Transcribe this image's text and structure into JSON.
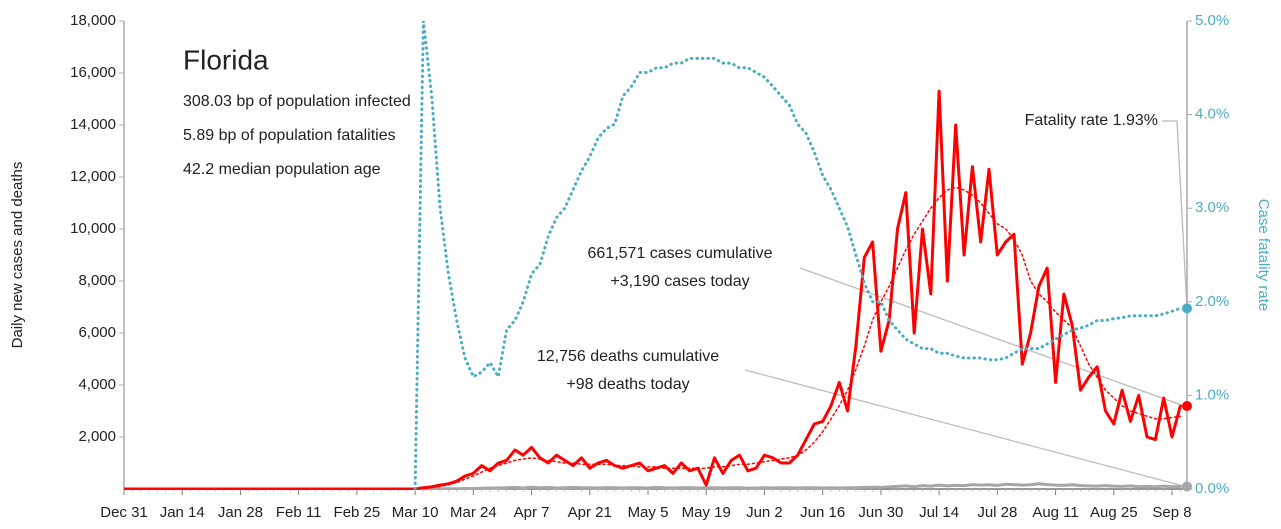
{
  "chart_data": {
    "type": "line",
    "title": "Florida",
    "subtitle_lines": [
      "308.03 bp of population infected",
      "5.89 bp of population fatalities",
      "42.2 median population age"
    ],
    "ylabel": "Daily new cases and deaths",
    "y2label": "Case fatality rate",
    "annotations": {
      "fatality": "Fatality rate 1.93%",
      "cases": [
        "661,571 cases cumulative",
        "+3,190 cases today"
      ],
      "deaths": [
        "12,756 deaths cumulative",
        "+98 deaths today"
      ]
    },
    "x": [
      "Dec 31",
      "Jan 2",
      "Jan 4",
      "Jan 6",
      "Jan 8",
      "Jan 10",
      "Jan 12",
      "Jan 14",
      "Jan 16",
      "Jan 18",
      "Jan 20",
      "Jan 22",
      "Jan 24",
      "Jan 26",
      "Jan 28",
      "Jan 30",
      "Feb 1",
      "Feb 3",
      "Feb 5",
      "Feb 7",
      "Feb 9",
      "Feb 11",
      "Feb 13",
      "Feb 15",
      "Feb 17",
      "Feb 19",
      "Feb 21",
      "Feb 23",
      "Feb 25",
      "Feb 27",
      "Feb 29",
      "Mar 2",
      "Mar 4",
      "Mar 6",
      "Mar 8",
      "Mar 10",
      "Mar 12",
      "Mar 14",
      "Mar 16",
      "Mar 18",
      "Mar 20",
      "Mar 22",
      "Mar 24",
      "Mar 26",
      "Mar 28",
      "Mar 30",
      "Apr 1",
      "Apr 3",
      "Apr 5",
      "Apr 7",
      "Apr 9",
      "Apr 11",
      "Apr 13",
      "Apr 15",
      "Apr 17",
      "Apr 19",
      "Apr 21",
      "Apr 23",
      "Apr 25",
      "Apr 27",
      "Apr 29",
      "May 1",
      "May 3",
      "May 5",
      "May 7",
      "May 9",
      "May 11",
      "May 13",
      "May 15",
      "May 17",
      "May 19",
      "May 21",
      "May 23",
      "May 25",
      "May 27",
      "May 29",
      "May 31",
      "Jun 2",
      "Jun 4",
      "Jun 6",
      "Jun 8",
      "Jun 10",
      "Jun 12",
      "Jun 14",
      "Jun 16",
      "Jun 18",
      "Jun 20",
      "Jun 22",
      "Jun 24",
      "Jun 26",
      "Jun 28",
      "Jun 30",
      "Jul 2",
      "Jul 4",
      "Jul 6",
      "Jul 8",
      "Jul 10",
      "Jul 12",
      "Jul 14",
      "Jul 16",
      "Jul 18",
      "Jul 20",
      "Jul 22",
      "Jul 24",
      "Jul 26",
      "Jul 28",
      "Jul 30",
      "Aug 1",
      "Aug 3",
      "Aug 5",
      "Aug 7",
      "Aug 9",
      "Aug 11",
      "Aug 13",
      "Aug 15",
      "Aug 17",
      "Aug 19",
      "Aug 21",
      "Aug 23",
      "Aug 25",
      "Aug 27",
      "Aug 29",
      "Aug 31",
      "Sep 2",
      "Sep 4",
      "Sep 6",
      "Sep 8",
      "Sep 10"
    ],
    "xticks": [
      "Dec 31",
      "Jan 14",
      "Jan 28",
      "Feb 11",
      "Feb 25",
      "Mar 10",
      "Mar 24",
      "Apr 7",
      "Apr 21",
      "May 5",
      "May 19",
      "Jun 2",
      "Jun 16",
      "Jun 30",
      "Jul 14",
      "Jul 28",
      "Aug 11",
      "Aug 25",
      "Sep 8"
    ],
    "ylim": [
      0,
      18000
    ],
    "yticks": [
      {
        "value": 2000,
        "label": "2,000"
      },
      {
        "value": 4000,
        "label": "4,000"
      },
      {
        "value": 6000,
        "label": "6,000"
      },
      {
        "value": 8000,
        "label": "8,000"
      },
      {
        "value": 10000,
        "label": "10,000"
      },
      {
        "value": 12000,
        "label": "12,000"
      },
      {
        "value": 14000,
        "label": "14,000"
      },
      {
        "value": 16000,
        "label": "16,000"
      },
      {
        "value": 18000,
        "label": "18,000"
      }
    ],
    "y2lim": [
      0,
      5
    ],
    "y2ticks": [
      {
        "value": 0,
        "label": "0.0%"
      },
      {
        "value": 1,
        "label": "1.0%"
      },
      {
        "value": 2,
        "label": "2.0%"
      },
      {
        "value": 3,
        "label": "3.0%"
      },
      {
        "value": 4,
        "label": "4.0%"
      },
      {
        "value": 5,
        "label": "5.0%"
      }
    ],
    "series": [
      {
        "name": "Daily new cases",
        "color": "#ff0000",
        "style": "solid",
        "width": 3,
        "endpoint": true,
        "values": [
          0,
          0,
          0,
          0,
          0,
          0,
          0,
          0,
          0,
          0,
          0,
          0,
          0,
          0,
          0,
          0,
          0,
          0,
          0,
          0,
          0,
          0,
          0,
          0,
          0,
          0,
          0,
          0,
          0,
          0,
          0,
          0,
          0,
          0,
          0,
          0,
          50,
          80,
          150,
          200,
          300,
          500,
          600,
          900,
          700,
          1000,
          1100,
          1500,
          1300,
          1600,
          1200,
          1000,
          1300,
          1100,
          900,
          1200,
          800,
          1000,
          1100,
          900,
          800,
          900,
          1000,
          700,
          800,
          900,
          600,
          1000,
          700,
          800,
          150,
          1200,
          600,
          1100,
          1300,
          700,
          800,
          1300,
          1200,
          1000,
          1000,
          1300,
          1900,
          2500,
          2600,
          3200,
          4100,
          3000,
          5500,
          8900,
          9500,
          5300,
          6500,
          10000,
          11400,
          6000,
          10000,
          7500,
          15300,
          8000,
          14000,
          9000,
          12400,
          9500,
          12300,
          9000,
          9500,
          9800,
          4800,
          6000,
          7800,
          8500,
          4100,
          7500,
          6300,
          3800,
          4300,
          4700,
          3000,
          2500,
          3800,
          2600,
          3600,
          2000,
          1900,
          3500,
          2000,
          3190
        ]
      },
      {
        "name": "Cases trend",
        "color": "#ff0000",
        "style": "dotted",
        "width": 1.5,
        "endpoint": false,
        "values": [
          null,
          null,
          null,
          null,
          null,
          null,
          null,
          null,
          null,
          null,
          null,
          null,
          null,
          null,
          null,
          null,
          null,
          null,
          null,
          null,
          null,
          null,
          null,
          null,
          null,
          null,
          null,
          null,
          null,
          null,
          null,
          null,
          null,
          null,
          null,
          null,
          30,
          60,
          100,
          160,
          250,
          380,
          500,
          650,
          800,
          900,
          1000,
          1100,
          1150,
          1200,
          1150,
          1100,
          1050,
          1000,
          1000,
          950,
          950,
          950,
          950,
          900,
          900,
          900,
          850,
          850,
          850,
          800,
          800,
          800,
          800,
          800,
          800,
          850,
          850,
          900,
          950,
          950,
          1000,
          1050,
          1100,
          1150,
          1200,
          1300,
          1500,
          1800,
          2200,
          2700,
          3200,
          3800,
          4600,
          5500,
          6500,
          7200,
          7800,
          8500,
          9200,
          9800,
          10300,
          10800,
          11200,
          11500,
          11600,
          11500,
          11300,
          11000,
          10600,
          10200,
          10000,
          9600,
          9000,
          8000,
          7500,
          7200,
          6800,
          6500,
          6200,
          5500,
          4800,
          4300,
          3800,
          3500,
          3200,
          3000,
          2900,
          2800,
          2700,
          2700,
          2750,
          2800
        ]
      },
      {
        "name": "Daily new deaths",
        "color": "#a6a6a6",
        "style": "solid",
        "width": 3,
        "endpoint": true,
        "values": [
          0,
          0,
          0,
          0,
          0,
          0,
          0,
          0,
          0,
          0,
          0,
          0,
          0,
          0,
          0,
          0,
          0,
          0,
          0,
          0,
          0,
          0,
          0,
          0,
          0,
          0,
          0,
          0,
          0,
          0,
          0,
          0,
          0,
          0,
          0,
          0,
          0,
          0,
          5,
          10,
          10,
          20,
          20,
          30,
          40,
          40,
          50,
          60,
          40,
          70,
          50,
          60,
          40,
          50,
          60,
          45,
          50,
          40,
          55,
          50,
          40,
          45,
          50,
          40,
          60,
          45,
          40,
          50,
          55,
          40,
          45,
          50,
          40,
          45,
          50,
          35,
          40,
          45,
          40,
          50,
          45,
          40,
          45,
          50,
          40,
          45,
          40,
          50,
          45,
          60,
          70,
          60,
          80,
          100,
          120,
          90,
          130,
          110,
          150,
          120,
          140,
          130,
          170,
          150,
          160,
          140,
          180,
          170,
          150,
          160,
          200,
          170,
          150,
          140,
          160,
          130,
          120,
          110,
          130,
          110,
          100,
          120,
          90,
          100,
          80,
          110,
          90,
          98
        ]
      },
      {
        "name": "Case fatality rate",
        "color": "#4aadc4",
        "style": "dotted",
        "width": 3,
        "axis": "y2",
        "endpoint": true,
        "values": [
          null,
          null,
          null,
          null,
          null,
          null,
          null,
          null,
          null,
          null,
          null,
          null,
          null,
          null,
          null,
          null,
          null,
          null,
          null,
          null,
          null,
          null,
          null,
          null,
          null,
          null,
          null,
          null,
          null,
          null,
          null,
          null,
          null,
          null,
          null,
          0,
          5.0,
          4.2,
          3.0,
          2.3,
          1.8,
          1.4,
          1.2,
          1.25,
          1.35,
          1.2,
          1.7,
          1.8,
          2.0,
          2.3,
          2.4,
          2.7,
          2.9,
          3.0,
          3.2,
          3.4,
          3.55,
          3.75,
          3.85,
          3.9,
          4.2,
          4.3,
          4.45,
          4.45,
          4.5,
          4.5,
          4.55,
          4.55,
          4.6,
          4.6,
          4.6,
          4.6,
          4.55,
          4.55,
          4.5,
          4.5,
          4.45,
          4.4,
          4.3,
          4.2,
          4.1,
          3.9,
          3.8,
          3.6,
          3.35,
          3.2,
          3.0,
          2.8,
          2.5,
          2.2,
          2.0,
          2.0,
          1.8,
          1.7,
          1.6,
          1.55,
          1.5,
          1.5,
          1.45,
          1.45,
          1.42,
          1.4,
          1.4,
          1.4,
          1.38,
          1.38,
          1.4,
          1.45,
          1.5,
          1.5,
          1.5,
          1.55,
          1.6,
          1.65,
          1.7,
          1.72,
          1.75,
          1.8,
          1.8,
          1.82,
          1.83,
          1.85,
          1.85,
          1.85,
          1.85,
          1.87,
          1.9,
          1.93
        ]
      }
    ]
  }
}
